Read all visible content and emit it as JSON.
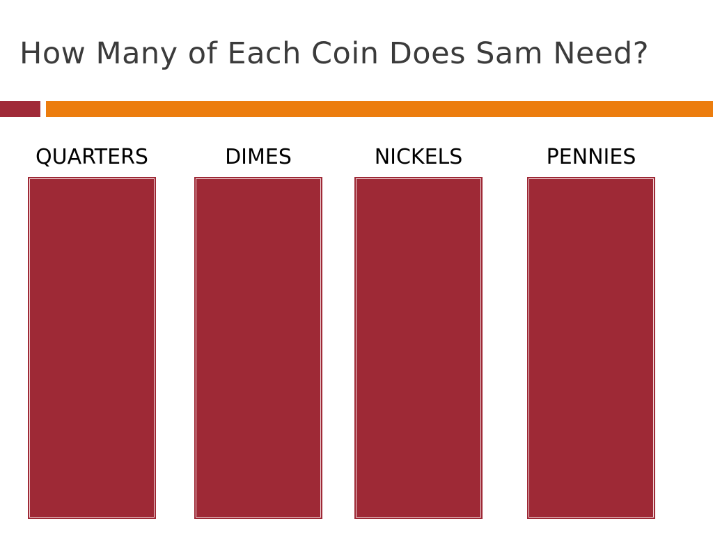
{
  "title": "How Many of Each Coin Does Sam Need?",
  "columns": [
    "QUARTERS",
    "DIMES",
    "NICKELS",
    "PENNIES"
  ]
}
